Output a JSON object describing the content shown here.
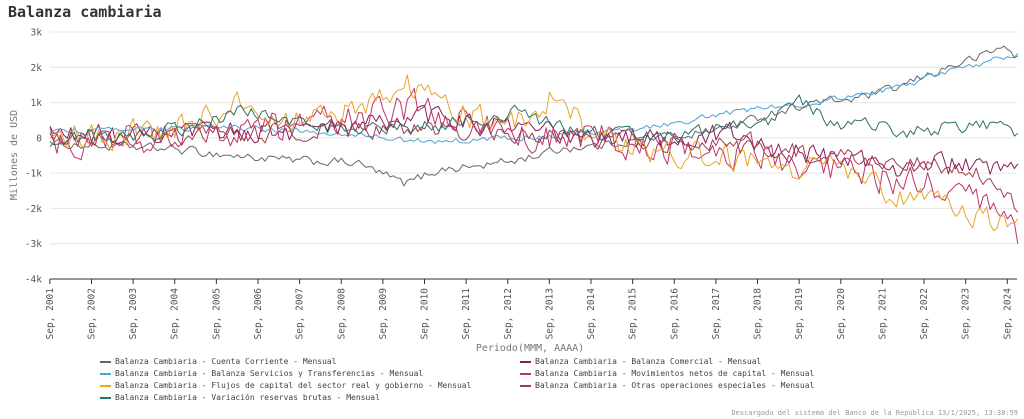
{
  "chart_data": {
    "type": "line",
    "title": "Balanza cambiaria",
    "xlabel": "Periodo(MMM, AAAA)",
    "ylabel": "Millones de USD",
    "ylim": [
      -4000,
      3000
    ],
    "y_ticks": [
      3000,
      2000,
      1000,
      0,
      -1000,
      -2000,
      -3000,
      -4000
    ],
    "y_tick_labels": [
      "3k",
      "2k",
      "1k",
      "0",
      "-1k",
      "-2k",
      "-3k",
      "-4k"
    ],
    "x_tick_labels": [
      "Sep, 2001",
      "Sep, 2002",
      "Sep, 2003",
      "Sep, 2004",
      "Sep, 2005",
      "Sep, 2006",
      "Sep, 2007",
      "Sep, 2008",
      "Sep, 2009",
      "Sep, 2010",
      "Sep, 2011",
      "Sep, 2012",
      "Sep, 2013",
      "Sep, 2014",
      "Sep, 2015",
      "Sep, 2016",
      "Sep, 2017",
      "Sep, 2018",
      "Sep, 2019",
      "Sep, 2020",
      "Sep, 2021",
      "Sep, 2022",
      "Sep, 2023",
      "Sep, 2024"
    ],
    "x_start": 2001.67,
    "x_end": 2024.9,
    "grid": true,
    "legend_position": "bottom",
    "series": [
      {
        "name": "Balanza Cambiaria - Cuenta Corriente - Mensual",
        "color": "#666666",
        "keyframes": [
          [
            2001.67,
            -150
          ],
          [
            2003,
            -250
          ],
          [
            2004.5,
            -300
          ],
          [
            2006,
            -500
          ],
          [
            2007.5,
            -650
          ],
          [
            2009,
            -700
          ],
          [
            2010.2,
            -1300
          ],
          [
            2011,
            -900
          ],
          [
            2012,
            -800
          ],
          [
            2013,
            -600
          ],
          [
            2014,
            -300
          ],
          [
            2015,
            -200
          ],
          [
            2016,
            0
          ],
          [
            2017,
            100
          ],
          [
            2018,
            300
          ],
          [
            2019,
            700
          ],
          [
            2020,
            1000
          ],
          [
            2021,
            1100
          ],
          [
            2022,
            1400
          ],
          [
            2023,
            1900
          ],
          [
            2024,
            2300
          ],
          [
            2024.6,
            2600
          ],
          [
            2024.9,
            2300
          ]
        ],
        "noise": 180
      },
      {
        "name": "Balanza Cambiaria - Balanza Comercial - Mensual",
        "color": "#8b1a5a",
        "keyframes": [
          [
            2001.67,
            100
          ],
          [
            2003,
            50
          ],
          [
            2004.5,
            0
          ],
          [
            2006,
            200
          ],
          [
            2007.5,
            200
          ],
          [
            2009,
            300
          ],
          [
            2010,
            500
          ],
          [
            2011,
            600
          ],
          [
            2012,
            400
          ],
          [
            2013,
            200
          ],
          [
            2014,
            100
          ],
          [
            2015,
            -100
          ],
          [
            2016,
            0
          ],
          [
            2017,
            0
          ],
          [
            2018,
            100
          ],
          [
            2019,
            -300
          ],
          [
            2020,
            -500
          ],
          [
            2021,
            -600
          ],
          [
            2022,
            -800
          ],
          [
            2023,
            -700
          ],
          [
            2024,
            -900
          ],
          [
            2024.9,
            -1000
          ]
        ],
        "noise": 450
      },
      {
        "name": "Balanza Cambiaria - Balanza Servicios y Transferencias - Mensual",
        "color": "#4aa3d9",
        "keyframes": [
          [
            2001.67,
            200
          ],
          [
            2003,
            200
          ],
          [
            2004.5,
            250
          ],
          [
            2006,
            300
          ],
          [
            2007.5,
            200
          ],
          [
            2009,
            100
          ],
          [
            2010,
            -50
          ],
          [
            2011,
            -100
          ],
          [
            2012,
            -50
          ],
          [
            2013,
            0
          ],
          [
            2014,
            100
          ],
          [
            2015,
            200
          ],
          [
            2016,
            300
          ],
          [
            2017,
            500
          ],
          [
            2018,
            700
          ],
          [
            2019,
            900
          ],
          [
            2020,
            1000
          ],
          [
            2021,
            1200
          ],
          [
            2022,
            1400
          ],
          [
            2023,
            1800
          ],
          [
            2024,
            2100
          ],
          [
            2024.9,
            2400
          ]
        ],
        "noise": 120
      },
      {
        "name": "Balanza Cambiaria - Movimientos netos de capital - Mensual",
        "color": "#c0306a",
        "keyframes": [
          [
            2001.67,
            -100
          ],
          [
            2003,
            0
          ],
          [
            2004.5,
            100
          ],
          [
            2006,
            200
          ],
          [
            2007.5,
            300
          ],
          [
            2009,
            500
          ],
          [
            2010.5,
            900
          ],
          [
            2011.5,
            500
          ],
          [
            2012.5,
            200
          ],
          [
            2013.5,
            0
          ],
          [
            2014.5,
            0
          ],
          [
            2015.5,
            -100
          ],
          [
            2016.5,
            -200
          ],
          [
            2017.5,
            -300
          ],
          [
            2018.5,
            -400
          ],
          [
            2019.5,
            -600
          ],
          [
            2020.5,
            -900
          ],
          [
            2021.5,
            -1100
          ],
          [
            2022.5,
            -1300
          ],
          [
            2023.5,
            -1700
          ],
          [
            2024.5,
            -2200
          ],
          [
            2024.9,
            -2800
          ]
        ],
        "noise": 650
      },
      {
        "name": "Balanza Cambiaria - Flujos de capital del sector real y gobierno - Mensual",
        "color": "#e8a32b",
        "keyframes": [
          [
            2001.67,
            0
          ],
          [
            2003,
            100
          ],
          [
            2004.5,
            200
          ],
          [
            2006.3,
            900
          ],
          [
            2007.5,
            500
          ],
          [
            2009,
            800
          ],
          [
            2010.2,
            1600
          ],
          [
            2011,
            900
          ],
          [
            2012,
            500
          ],
          [
            2013,
            600
          ],
          [
            2013.9,
            1200
          ],
          [
            2014.5,
            200
          ],
          [
            2015.5,
            -200
          ],
          [
            2016.5,
            -400
          ],
          [
            2017.5,
            -500
          ],
          [
            2018.5,
            -600
          ],
          [
            2019.5,
            -900
          ],
          [
            2020.5,
            -700
          ],
          [
            2021.5,
            -1400
          ],
          [
            2022.5,
            -1800
          ],
          [
            2023.5,
            -2000
          ],
          [
            2024.5,
            -2300
          ],
          [
            2024.9,
            -2600
          ]
        ],
        "noise": 550
      },
      {
        "name": "Balanza Cambiaria - Otras operaciones especiales - Mensual",
        "color": "#a23b4b",
        "keyframes": [
          [
            2001.67,
            0
          ],
          [
            2004,
            0
          ],
          [
            2006,
            100
          ],
          [
            2008,
            200
          ],
          [
            2010,
            300
          ],
          [
            2012,
            200
          ],
          [
            2014,
            0
          ],
          [
            2016,
            -100
          ],
          [
            2018,
            -200
          ],
          [
            2019.6,
            -400
          ],
          [
            2020.5,
            -500
          ],
          [
            2021.5,
            -600
          ],
          [
            2022.5,
            -800
          ],
          [
            2023.5,
            -900
          ],
          [
            2024.5,
            -1200
          ],
          [
            2024.9,
            -2000
          ]
        ],
        "noise": 380
      },
      {
        "name": "Balanza Cambiaria - Variación reservas brutas - Mensual",
        "color": "#2e6f6a",
        "keyframes": [
          [
            2001.67,
            0
          ],
          [
            2004,
            100
          ],
          [
            2005,
            300
          ],
          [
            2006.5,
            800
          ],
          [
            2007.5,
            400
          ],
          [
            2009,
            200
          ],
          [
            2010.5,
            300
          ],
          [
            2012,
            600
          ],
          [
            2013,
            700
          ],
          [
            2014,
            300
          ],
          [
            2015,
            100
          ],
          [
            2016,
            0
          ],
          [
            2017,
            100
          ],
          [
            2018,
            300
          ],
          [
            2019,
            500
          ],
          [
            2019.6,
            1200
          ],
          [
            2020.5,
            400
          ],
          [
            2021.5,
            300
          ],
          [
            2022.5,
            200
          ],
          [
            2023.5,
            300
          ],
          [
            2024.5,
            400
          ],
          [
            2024.9,
            100
          ]
        ],
        "noise": 300
      }
    ]
  },
  "footer": "Descargado del sistema del Banco de la República 13/1/2025, 13:38:59"
}
